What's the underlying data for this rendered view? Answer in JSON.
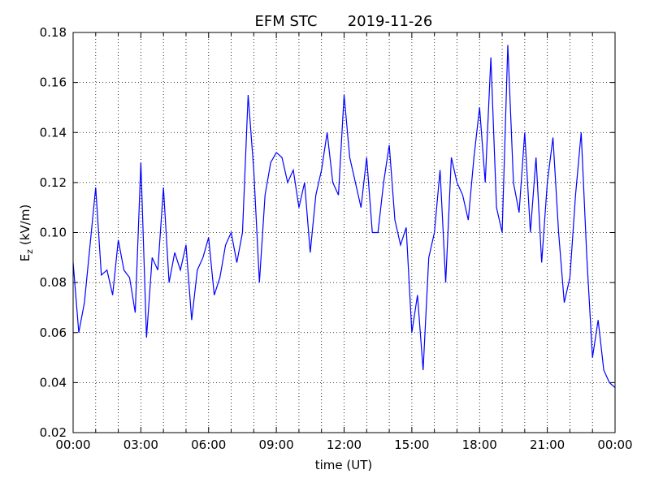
{
  "chart_data": {
    "type": "line",
    "title": "EFM STC",
    "date": "2019-11-26",
    "xlabel": "time (UT)",
    "ylabel": [
      "E",
      "z",
      "(kV/m)"
    ],
    "x": [
      0,
      0.25,
      0.5,
      0.75,
      1,
      1.25,
      1.5,
      1.75,
      2,
      2.25,
      2.5,
      2.75,
      3,
      3.25,
      3.5,
      3.75,
      4,
      4.25,
      4.5,
      4.75,
      5,
      5.25,
      5.5,
      5.75,
      6,
      6.25,
      6.5,
      6.75,
      7,
      7.25,
      7.5,
      7.75,
      8,
      8.25,
      8.5,
      8.75,
      9,
      9.25,
      9.5,
      9.75,
      10,
      10.25,
      10.5,
      10.75,
      11,
      11.25,
      11.5,
      11.75,
      12,
      12.25,
      12.5,
      12.75,
      13,
      13.25,
      13.5,
      13.75,
      14,
      14.25,
      14.5,
      14.75,
      15,
      15.25,
      15.5,
      15.75,
      16,
      16.25,
      16.5,
      16.75,
      17,
      17.25,
      17.5,
      17.75,
      18,
      18.25,
      18.5,
      18.75,
      19,
      19.25,
      19.5,
      19.75,
      20,
      20.25,
      20.5,
      20.75,
      21,
      21.25,
      21.5,
      21.75,
      22,
      22.25,
      22.5,
      22.75,
      23,
      23.25,
      23.5,
      23.75,
      24
    ],
    "series": [
      {
        "name": "Ez",
        "color": "#0000ff",
        "values": [
          0.088,
          0.06,
          0.072,
          0.095,
          0.118,
          0.083,
          0.085,
          0.075,
          0.097,
          0.085,
          0.082,
          0.068,
          0.128,
          0.058,
          0.09,
          0.085,
          0.118,
          0.08,
          0.092,
          0.085,
          0.095,
          0.065,
          0.085,
          0.09,
          0.098,
          0.075,
          0.082,
          0.095,
          0.1,
          0.088,
          0.1,
          0.155,
          0.125,
          0.08,
          0.115,
          0.128,
          0.132,
          0.13,
          0.12,
          0.125,
          0.11,
          0.12,
          0.092,
          0.115,
          0.125,
          0.14,
          0.12,
          0.115,
          0.155,
          0.13,
          0.12,
          0.11,
          0.13,
          0.1,
          0.1,
          0.12,
          0.135,
          0.105,
          0.095,
          0.102,
          0.06,
          0.075,
          0.045,
          0.09,
          0.1,
          0.125,
          0.08,
          0.13,
          0.12,
          0.115,
          0.105,
          0.13,
          0.15,
          0.12,
          0.17,
          0.11,
          0.1,
          0.175,
          0.12,
          0.108,
          0.14,
          0.1,
          0.13,
          0.088,
          0.12,
          0.138,
          0.1,
          0.072,
          0.082,
          0.115,
          0.14,
          0.09,
          0.05,
          0.065,
          0.045,
          0.04,
          0.038
        ]
      }
    ],
    "xlim": [
      0,
      24
    ],
    "xticks": [
      {
        "value": 0,
        "label": "00:00"
      },
      {
        "value": 3,
        "label": "03:00"
      },
      {
        "value": 6,
        "label": "06:00"
      },
      {
        "value": 9,
        "label": "09:00"
      },
      {
        "value": 12,
        "label": "12:00"
      },
      {
        "value": 15,
        "label": "15:00"
      },
      {
        "value": 18,
        "label": "18:00"
      },
      {
        "value": 21,
        "label": "21:00"
      },
      {
        "value": 24,
        "label": "00:00"
      }
    ],
    "x_minor_ticks": [
      1,
      2,
      4,
      5,
      7,
      8,
      10,
      11,
      13,
      14,
      16,
      17,
      19,
      20,
      22,
      23
    ],
    "ylim": [
      0.02,
      0.18
    ],
    "yticks": [
      {
        "value": 0.02,
        "label": "0.02"
      },
      {
        "value": 0.04,
        "label": "0.04"
      },
      {
        "value": 0.06,
        "label": "0.06"
      },
      {
        "value": 0.08,
        "label": "0.08"
      },
      {
        "value": 0.1,
        "label": "0.10"
      },
      {
        "value": 0.12,
        "label": "0.12"
      },
      {
        "value": 0.14,
        "label": "0.14"
      },
      {
        "value": 0.16,
        "label": "0.16"
      },
      {
        "value": 0.18,
        "label": "0.18"
      }
    ],
    "grid": true
  }
}
